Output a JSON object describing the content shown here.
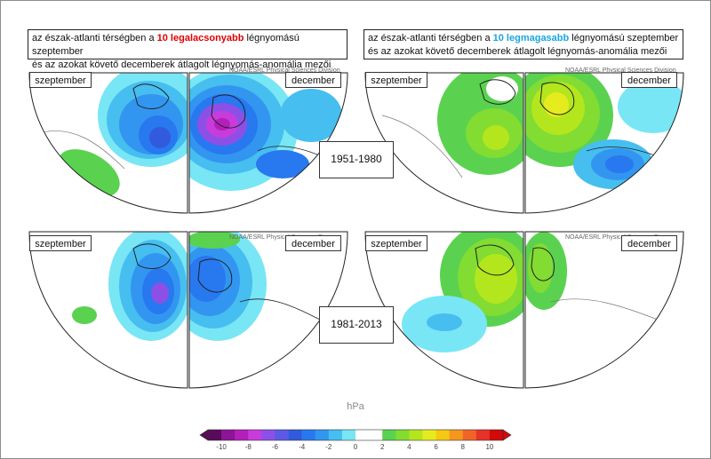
{
  "title_low": {
    "pre": "az észak-atlanti térségben a ",
    "highlight": "10 legalacsonyabb",
    "post": " légnyomású szeptember",
    "line2": "és az azokat követő  decemberek átlagolt légnyomás-anomália mezői"
  },
  "title_high": {
    "pre": "az észak-atlanti térségben a ",
    "highlight": "10 legmagasabb",
    "post": " légnyomású szeptember",
    "line2": "és az azokat követő  decemberek átlagolt légnyomás-anomália mezői"
  },
  "periods": [
    "1951-1980",
    "1981-2013"
  ],
  "month_labels": {
    "sep": "szeptember",
    "dec": "december"
  },
  "watermark": "NOAA/ESRL Physical Sciences Division",
  "colorbar": {
    "unit": "hPa",
    "ticks": [
      "-10",
      "-8",
      "-6",
      "-4",
      "-2",
      "0",
      "2",
      "4",
      "6",
      "8",
      "10"
    ],
    "colors": [
      "#5a0a5a",
      "#8c1496",
      "#b41eb9",
      "#c83cdc",
      "#8c50e6",
      "#5a5ae6",
      "#325adc",
      "#2878f0",
      "#3296f0",
      "#46bef0",
      "#78e6f5",
      "#ffffff",
      "#ffffff",
      "#5ad250",
      "#82dc32",
      "#b4e61e",
      "#e6eb1e",
      "#f5c814",
      "#f5961e",
      "#f06428",
      "#e63228",
      "#d20a0a"
    ]
  }
}
